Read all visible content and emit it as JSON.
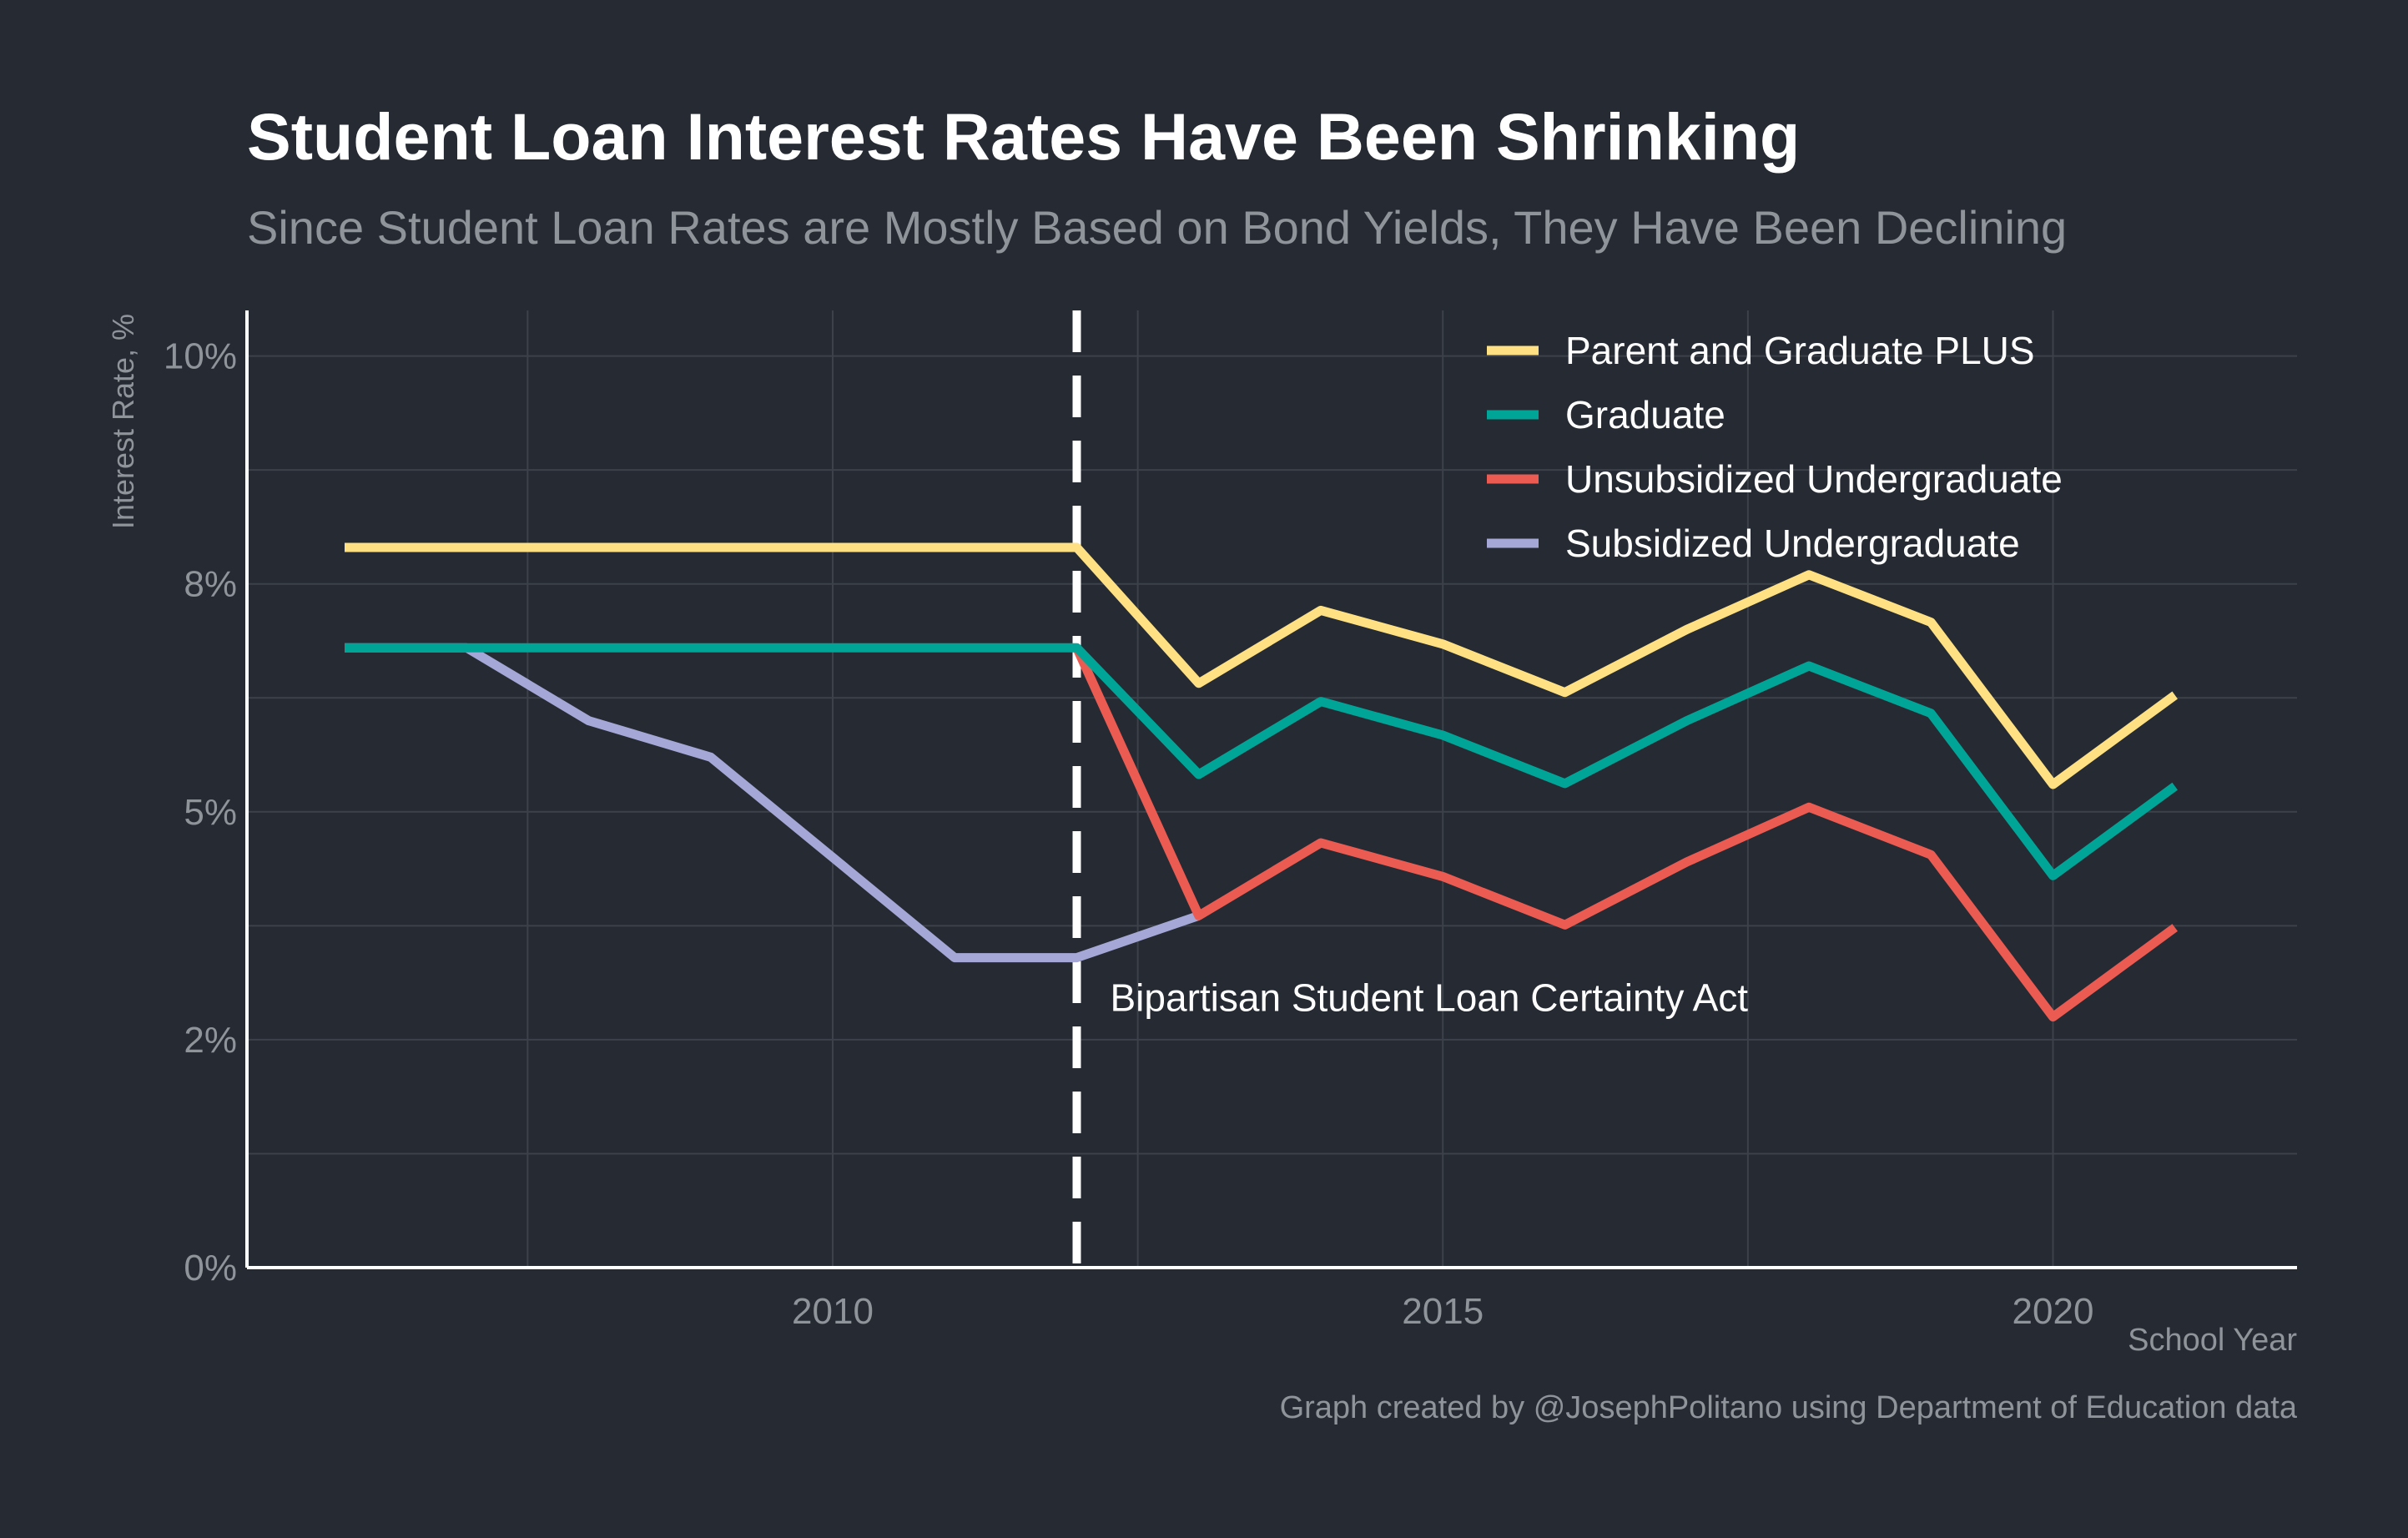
{
  "title": "Student Loan Interest Rates Have Been Shrinking",
  "subtitle": "Since Student Loan Rates are Mostly Based on Bond Yields, They Have Been Declining",
  "caption": "Graph created by @JosephPolitano using Department of Education data",
  "colors": {
    "background": "#252a33",
    "grid": "#3c414a",
    "axis": "#ffffff",
    "muted_text": "#8f939a"
  },
  "chart_data": {
    "type": "line",
    "xlabel": "School Year",
    "ylabel": "Interest Rate, %",
    "xlim": [
      2005.2,
      2022.0
    ],
    "ylim": [
      0,
      10.5
    ],
    "x_ticks": [
      2010,
      2015,
      2020
    ],
    "x_tick_labels": [
      "2010",
      "2015",
      "2020"
    ],
    "y_ticks": [
      0,
      2.5,
      5,
      7.5,
      10
    ],
    "y_tick_labels": [
      "0%",
      "2%",
      "5%",
      "8%",
      "10%"
    ],
    "grid": true,
    "legend_position": "top-right",
    "annotation": {
      "x": 2012,
      "label": "Bipartisan Student Loan Certainty Act",
      "style": "dashed-vertical-line"
    },
    "series": [
      {
        "name": "Parent and Graduate PLUS",
        "color": "#ffe184",
        "x": [
          2006,
          2007,
          2008,
          2009,
          2010,
          2011,
          2012,
          2013,
          2014,
          2015,
          2016,
          2017,
          2018,
          2019,
          2020,
          2021
        ],
        "values": [
          7.9,
          7.9,
          7.9,
          7.9,
          7.9,
          7.9,
          7.9,
          6.41,
          7.21,
          6.84,
          6.31,
          7.0,
          7.6,
          7.08,
          5.3,
          6.28
        ]
      },
      {
        "name": "Graduate",
        "color": "#00a597",
        "x": [
          2006,
          2007,
          2008,
          2009,
          2010,
          2011,
          2012,
          2013,
          2014,
          2015,
          2016,
          2017,
          2018,
          2019,
          2020,
          2021
        ],
        "values": [
          6.8,
          6.8,
          6.8,
          6.8,
          6.8,
          6.8,
          6.8,
          5.41,
          6.21,
          5.84,
          5.31,
          6.0,
          6.6,
          6.08,
          4.3,
          5.28
        ]
      },
      {
        "name": "Unsubsidized Undergraduate",
        "color": "#ec5b52",
        "x": [
          2012,
          2013,
          2014,
          2015,
          2016,
          2017,
          2018,
          2019,
          2020,
          2021
        ],
        "values": [
          6.8,
          3.86,
          4.66,
          4.29,
          3.76,
          4.45,
          5.05,
          4.53,
          2.75,
          3.73
        ]
      },
      {
        "name": "Subsidized Undergraduate",
        "color": "#a5a8d6",
        "x": [
          2006,
          2007,
          2008,
          2009,
          2010,
          2011,
          2012,
          2013
        ],
        "values": [
          6.8,
          6.8,
          6.0,
          5.6,
          4.5,
          3.4,
          3.4,
          3.86
        ]
      }
    ]
  }
}
